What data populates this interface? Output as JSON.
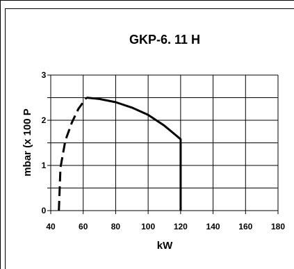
{
  "chart_data": {
    "type": "line",
    "title": "GKP-6. 11 H",
    "xlabel": "kW",
    "ylabel": "mbar (x 100 P",
    "xlim": [
      40,
      180
    ],
    "ylim": [
      0,
      3
    ],
    "x_ticks": [
      "40",
      "60",
      "80",
      "100",
      "120",
      "140",
      "160",
      "180"
    ],
    "y_ticks": [
      "0",
      "1",
      "2",
      "3"
    ],
    "grid": true,
    "series": [
      {
        "style": "dashed",
        "x": [
          45,
          46,
          49,
          53,
          57,
          62
        ],
        "y": [
          0.0,
          0.95,
          1.55,
          1.95,
          2.25,
          2.5
        ]
      },
      {
        "style": "solid",
        "x": [
          62,
          70,
          80,
          90,
          100,
          110,
          120,
          120
        ],
        "y": [
          2.5,
          2.47,
          2.4,
          2.28,
          2.12,
          1.88,
          1.58,
          0.0
        ]
      }
    ],
    "line_color": "#000000",
    "grid_color": "#000000"
  }
}
